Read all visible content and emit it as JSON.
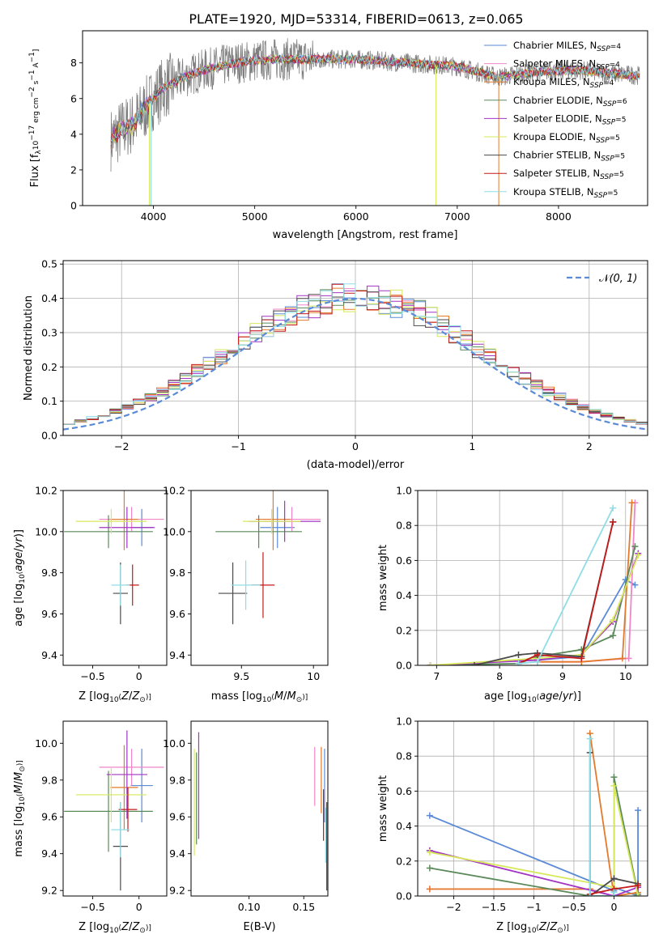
{
  "figure_title": "PLATE=1920, MJD=53314, FIBERID=0613, z=0.065",
  "colors": {
    "Chabrier MILES": "#5b8ad6",
    "Salpeter MILES": "#ee86c8",
    "Kroupa MILES": "#e47a2b",
    "Chabrier ELODIE": "#5a8a5a",
    "Salpeter ELODIE": "#a334c4",
    "Kroupa ELODIE": "#d7e85b",
    "Chabrier STELIB": "#4a4a4a",
    "Salpeter STELIB": "#c41a1a",
    "Kroupa STELIB": "#8fdde6",
    "data": "#808080"
  },
  "chart_data": [
    {
      "id": "spectrum",
      "type": "line",
      "title": "PLATE=1920, MJD=53314, FIBERID=0613, z=0.065",
      "xlabel": "wavelength [Angstrom, rest frame]",
      "ylabel": "Flux [f_λ10^-17 erg cm^-2 s^-1 A^-1]",
      "xlim": [
        3300,
        8880
      ],
      "ylim": [
        0,
        9.8
      ],
      "xticks": [
        4000,
        5000,
        6000,
        7000,
        8000
      ],
      "yticks": [
        0,
        2,
        4,
        6,
        8
      ],
      "grid": false,
      "legend_position": "top-right",
      "continuum_x": [
        3580,
        3700,
        3800,
        3900,
        4000,
        4100,
        4300,
        4500,
        4800,
        5200,
        5600,
        6000,
        6500,
        7000,
        7400,
        7800,
        8200,
        8500,
        8800
      ],
      "continuum_y": [
        3.7,
        4.3,
        4.6,
        5.3,
        6.0,
        6.6,
        7.2,
        7.6,
        8.0,
        8.2,
        8.2,
        8.2,
        8.0,
        7.8,
        7.2,
        7.5,
        7.6,
        7.4,
        7.3
      ],
      "series": [
        {
          "name": "Chabrier MILES, N_SSP=4",
          "label_main": "Chabrier MILES, N",
          "label_sub": "SSP",
          "label_tail": "=4"
        },
        {
          "name": "Salpeter MILES, N_SSP=4",
          "label_main": "Salpeter MILES, N",
          "label_sub": "SSP",
          "label_tail": "=4"
        },
        {
          "name": "Kroupa MILES, N_SSP=4",
          "label_main": "Kroupa MILES, N",
          "label_sub": "SSP",
          "label_tail": "=4"
        },
        {
          "name": "Chabrier ELODIE, N_SSP=6",
          "label_main": "Chabrier ELODIE, N",
          "label_sub": "SSP",
          "label_tail": "=6"
        },
        {
          "name": "Salpeter ELODIE, N_SSP=5",
          "label_main": "Salpeter ELODIE, N",
          "label_sub": "SSP",
          "label_tail": "=5"
        },
        {
          "name": "Kroupa ELODIE, N_SSP=5",
          "label_main": "Kroupa ELODIE, N",
          "label_sub": "SSP",
          "label_tail": "=5"
        },
        {
          "name": "Chabrier STELIB, N_SSP=5",
          "label_main": "Chabrier STELIB, N",
          "label_sub": "SSP",
          "label_tail": "=5"
        },
        {
          "name": "Salpeter STELIB, N_SSP=5",
          "label_main": "Salpeter STELIB, N",
          "label_sub": "SSP",
          "label_tail": "=5"
        },
        {
          "name": "Kroupa STELIB, N_SSP=5",
          "label_main": "Kroupa STELIB, N",
          "label_sub": "SSP",
          "label_tail": "=5"
        }
      ]
    },
    {
      "id": "residuals",
      "type": "histogram",
      "xlabel": "(data-model)/error",
      "ylabel": "Normed distribution",
      "xlim": [
        -2.5,
        2.5
      ],
      "ylim": [
        0,
        0.51
      ],
      "xticks": [
        -2,
        -1,
        0,
        1,
        2
      ],
      "yticks": [
        0.0,
        0.1,
        0.2,
        0.3,
        0.4,
        0.5
      ],
      "grid": true,
      "legend_position": "top-right",
      "reference": {
        "name": "N(0,1)",
        "mean": 0,
        "sigma": 1
      },
      "bin_width": 0.1
    },
    {
      "id": "age_vs_Z",
      "type": "errorbar",
      "xlabel": "Z [log10(Z/Z☉)]",
      "ylabel": "age [log10(age/yr)]",
      "xlim": [
        -0.82,
        0.3
      ],
      "ylim": [
        9.35,
        10.2
      ],
      "xticks": [
        -0.5,
        0.0
      ],
      "yticks": [
        9.4,
        9.6,
        9.8,
        10.0,
        10.2
      ],
      "points": [
        {
          "model": "Chabrier MILES",
          "x": 0.03,
          "y": 10.02,
          "xerr": 0.12,
          "yerr": 0.09
        },
        {
          "model": "Salpeter MILES",
          "x": -0.08,
          "y": 10.06,
          "xerr": 0.35,
          "yerr": 0.06
        },
        {
          "model": "Kroupa MILES",
          "x": -0.16,
          "y": 10.06,
          "xerr": 0.15,
          "yerr": 0.15
        },
        {
          "model": "Chabrier ELODIE",
          "x": -0.33,
          "y": 10.0,
          "xerr": 0.48,
          "yerr": 0.08
        },
        {
          "model": "Salpeter ELODIE",
          "x": -0.13,
          "y": 10.02,
          "xerr": 0.3,
          "yerr": 0.1
        },
        {
          "model": "Kroupa ELODIE",
          "x": -0.3,
          "y": 10.05,
          "xerr": 0.38,
          "yerr": 0.06
        },
        {
          "model": "Chabrier STELIB",
          "x": -0.2,
          "y": 9.7,
          "xerr": 0.08,
          "yerr": 0.15
        },
        {
          "model": "Salpeter STELIB",
          "x": -0.07,
          "y": 9.74,
          "xerr": 0.07,
          "yerr": 0.1
        },
        {
          "model": "Kroupa STELIB",
          "x": -0.2,
          "y": 9.74,
          "xerr": 0.1,
          "yerr": 0.1
        }
      ]
    },
    {
      "id": "age_vs_mass",
      "type": "errorbar",
      "xlabel": "mass [log10(M/M☉)]",
      "xlim": [
        9.15,
        10.1
      ],
      "ylim": [
        9.35,
        10.2
      ],
      "xticks": [
        9.5,
        10.0
      ],
      "yticks": [
        9.4,
        9.6,
        9.8,
        10.0,
        10.2
      ],
      "points": [
        {
          "model": "Chabrier MILES",
          "x": 9.75,
          "y": 10.02,
          "xerr": 0.12,
          "yerr": 0.1
        },
        {
          "model": "Salpeter MILES",
          "x": 9.85,
          "y": 10.06,
          "xerr": 0.2,
          "yerr": 0.06
        },
        {
          "model": "Kroupa MILES",
          "x": 9.72,
          "y": 10.06,
          "xerr": 0.12,
          "yerr": 0.15
        },
        {
          "model": "Chabrier ELODIE",
          "x": 9.62,
          "y": 10.0,
          "xerr": 0.3,
          "yerr": 0.08
        },
        {
          "model": "Salpeter ELODIE",
          "x": 9.8,
          "y": 10.05,
          "xerr": 0.25,
          "yerr": 0.1
        },
        {
          "model": "Kroupa ELODIE",
          "x": 9.71,
          "y": 10.05,
          "xerr": 0.2,
          "yerr": 0.06
        },
        {
          "model": "Chabrier STELIB",
          "x": 9.44,
          "y": 9.7,
          "xerr": 0.1,
          "yerr": 0.15
        },
        {
          "model": "Salpeter STELIB",
          "x": 9.65,
          "y": 9.74,
          "xerr": 0.08,
          "yerr": 0.16
        },
        {
          "model": "Kroupa STELIB",
          "x": 9.53,
          "y": 9.74,
          "xerr": 0.1,
          "yerr": 0.12
        }
      ]
    },
    {
      "id": "mw_vs_age",
      "type": "line",
      "xlabel": "age [log10(age/yr)]",
      "ylabel": "mass weight",
      "xlim": [
        6.7,
        10.35
      ],
      "ylim": [
        0,
        1.0
      ],
      "xticks": [
        7,
        8,
        9,
        10
      ],
      "yticks": [
        0.0,
        0.2,
        0.4,
        0.6,
        0.8,
        1.0
      ],
      "grid": true,
      "series": [
        {
          "model": "Chabrier MILES",
          "x": [
            8.6,
            9.3,
            10.0,
            10.15
          ],
          "y": [
            0.03,
            0.05,
            0.49,
            0.46
          ]
        },
        {
          "model": "Salpeter MILES",
          "x": [
            8.6,
            9.3,
            10.05,
            10.15
          ],
          "y": [
            0.02,
            0.02,
            0.04,
            0.93
          ]
        },
        {
          "model": "Kroupa MILES",
          "x": [
            8.6,
            9.3,
            9.95,
            10.1
          ],
          "y": [
            0.02,
            0.02,
            0.04,
            0.93
          ]
        },
        {
          "model": "Chabrier ELODIE",
          "x": [
            6.9,
            8.3,
            8.6,
            9.3,
            9.8,
            10.15
          ],
          "y": [
            0.0,
            0.01,
            0.05,
            0.09,
            0.17,
            0.68
          ]
        },
        {
          "model": "Salpeter ELODIE",
          "x": [
            6.9,
            8.6,
            9.3,
            9.8,
            10.2
          ],
          "y": [
            0.0,
            0.03,
            0.06,
            0.25,
            0.64
          ]
        },
        {
          "model": "Kroupa ELODIE",
          "x": [
            6.9,
            8.6,
            9.3,
            9.8,
            10.2
          ],
          "y": [
            0.0,
            0.04,
            0.06,
            0.26,
            0.63
          ]
        },
        {
          "model": "Chabrier STELIB",
          "x": [
            7.6,
            8.3,
            8.6,
            9.3,
            9.8
          ],
          "y": [
            0.0,
            0.06,
            0.07,
            0.05,
            0.82
          ]
        },
        {
          "model": "Salpeter STELIB",
          "x": [
            8.3,
            8.6,
            9.3,
            9.8
          ],
          "y": [
            0.01,
            0.06,
            0.04,
            0.82
          ]
        },
        {
          "model": "Kroupa STELIB",
          "x": [
            8.3,
            8.6,
            9.8
          ],
          "y": [
            0.01,
            0.02,
            0.9
          ]
        }
      ]
    },
    {
      "id": "mass_vs_Z",
      "type": "errorbar",
      "xlabel": "Z [log10(Z/Z☉)]",
      "ylabel": "mass [log10(M/M☉)]",
      "xlim": [
        -0.82,
        0.3
      ],
      "ylim": [
        9.17,
        10.12
      ],
      "xticks": [
        -0.5,
        0.0
      ],
      "yticks": [
        9.2,
        9.4,
        9.6,
        9.8,
        10.0
      ],
      "points": [
        {
          "model": "Chabrier MILES",
          "x": 0.03,
          "y": 9.77,
          "xerr": 0.12,
          "yerr": 0.2
        },
        {
          "model": "Salpeter MILES",
          "x": -0.08,
          "y": 9.87,
          "xerr": 0.35,
          "yerr": 0.1
        },
        {
          "model": "Kroupa MILES",
          "x": -0.16,
          "y": 9.76,
          "xerr": 0.15,
          "yerr": 0.23
        },
        {
          "model": "Chabrier ELODIE",
          "x": -0.33,
          "y": 9.63,
          "xerr": 0.48,
          "yerr": 0.22
        },
        {
          "model": "Salpeter ELODIE",
          "x": -0.13,
          "y": 9.83,
          "xerr": 0.22,
          "yerr": 0.24
        },
        {
          "model": "Kroupa ELODIE",
          "x": -0.3,
          "y": 9.72,
          "xerr": 0.38,
          "yerr": 0.15
        },
        {
          "model": "Chabrier STELIB",
          "x": -0.2,
          "y": 9.44,
          "xerr": 0.08,
          "yerr": 0.24
        },
        {
          "model": "Salpeter STELIB",
          "x": -0.12,
          "y": 9.64,
          "xerr": 0.1,
          "yerr": 0.12
        },
        {
          "model": "Kroupa STELIB",
          "x": -0.2,
          "y": 9.53,
          "xerr": 0.1,
          "yerr": 0.15
        }
      ]
    },
    {
      "id": "mass_vs_ebv",
      "type": "errorbar",
      "xlabel": "E(B-V)",
      "xlim": [
        0.047,
        0.172
      ],
      "ylim": [
        9.17,
        10.12
      ],
      "xticks": [
        0.1,
        0.15
      ],
      "xtick_labels": [
        "0.10",
        "0.15"
      ],
      "yticks": [
        9.2,
        9.4,
        9.6,
        9.8,
        10.0
      ],
      "points": [
        {
          "model": "Chabrier MILES",
          "x": 0.169,
          "y": 9.77,
          "yerr": 0.2
        },
        {
          "model": "Salpeter MILES",
          "x": 0.16,
          "y": 9.82,
          "yerr": 0.16
        },
        {
          "model": "Kroupa MILES",
          "x": 0.166,
          "y": 9.8,
          "yerr": 0.18
        },
        {
          "model": "Chabrier ELODIE",
          "x": 0.052,
          "y": 9.7,
          "yerr": 0.25
        },
        {
          "model": "Salpeter ELODIE",
          "x": 0.054,
          "y": 9.77,
          "yerr": 0.29
        },
        {
          "model": "Kroupa ELODIE",
          "x": 0.05,
          "y": 9.68,
          "yerr": 0.29
        },
        {
          "model": "Chabrier STELIB",
          "x": 0.171,
          "y": 9.44,
          "yerr": 0.24
        },
        {
          "model": "Salpeter STELIB",
          "x": 0.168,
          "y": 9.61,
          "yerr": 0.14
        },
        {
          "model": "Kroupa STELIB",
          "x": 0.17,
          "y": 9.5,
          "yerr": 0.15
        }
      ]
    },
    {
      "id": "mw_vs_Z",
      "type": "line",
      "xlabel": "Z [log10(Z/Z☉)]",
      "ylabel": "mass weight",
      "xlim": [
        -2.45,
        0.42
      ],
      "ylim": [
        0,
        1.0
      ],
      "xticks": [
        -2.0,
        -1.5,
        -1.0,
        -0.5,
        0.0
      ],
      "yticks": [
        0.0,
        0.2,
        0.4,
        0.6,
        0.8,
        1.0
      ],
      "grid": true,
      "series": [
        {
          "model": "Chabrier MILES",
          "x": [
            -2.3,
            0.0,
            0.0,
            0.3,
            0.3
          ],
          "y": [
            0.46,
            0.03,
            0.05,
            0.0,
            0.49
          ]
        },
        {
          "model": "Salpeter MILES",
          "x": [
            -2.3,
            -0.3,
            0.0
          ],
          "y": [
            0.04,
            0.04,
            0.0
          ]
        },
        {
          "model": "Kroupa MILES",
          "x": [
            -2.3,
            -0.3,
            -0.3,
            0.0,
            0.3
          ],
          "y": [
            0.04,
            0.04,
            0.93,
            0.0,
            0.02
          ]
        },
        {
          "model": "Chabrier ELODIE",
          "x": [
            -2.3,
            -0.3,
            0.0,
            0.0,
            0.3
          ],
          "y": [
            0.16,
            0.0,
            0.0,
            0.68,
            0.01
          ]
        },
        {
          "model": "Salpeter ELODIE",
          "x": [
            -2.3,
            0.0,
            0.3
          ],
          "y": [
            0.26,
            0.0,
            0.05
          ]
        },
        {
          "model": "Kroupa ELODIE",
          "x": [
            -2.3,
            0.0,
            0.0,
            0.3
          ],
          "y": [
            0.25,
            0.05,
            0.63,
            0.0
          ]
        },
        {
          "model": "Chabrier STELIB",
          "x": [
            -0.3,
            -0.3,
            0.0,
            0.3
          ],
          "y": [
            0.82,
            0.0,
            0.1,
            0.07
          ]
        },
        {
          "model": "Salpeter STELIB",
          "x": [
            -0.3,
            0.0,
            0.3
          ],
          "y": [
            0.01,
            0.04,
            0.06
          ]
        },
        {
          "model": "Kroupa STELIB",
          "x": [
            -0.3,
            -0.3,
            0.0,
            0.0
          ],
          "y": [
            0.9,
            0.0,
            0.0,
            0.02
          ]
        }
      ]
    }
  ]
}
